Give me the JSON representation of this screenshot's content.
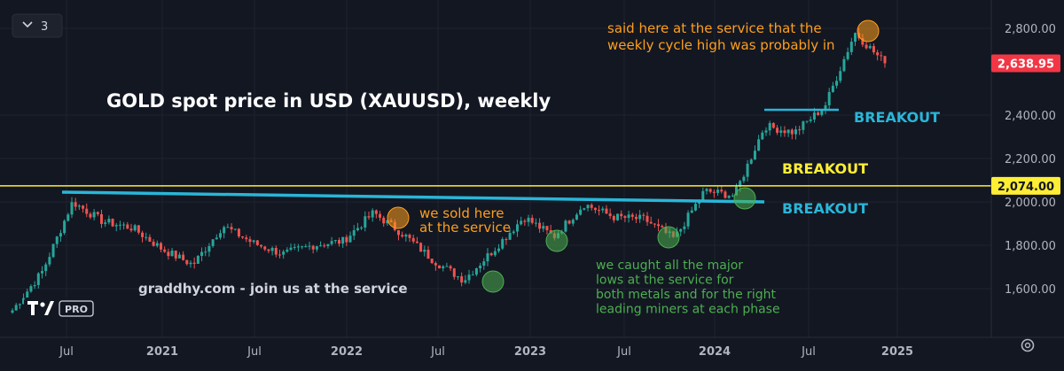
{
  "header": {
    "collapse_count": "3"
  },
  "branding": {
    "logo": "TV",
    "badge": "PRO"
  },
  "chart_data": {
    "type": "candlestick",
    "title": "GOLD spot price in USD (XAUUSD), weekly",
    "y_ticks": [
      1600,
      1800,
      2000,
      2200,
      2400,
      2800
    ],
    "y_tick_labels": [
      "1,600.00",
      "1,800.00",
      "2,000.00",
      "2,200.00",
      "2,400.00",
      "2,800.00"
    ],
    "ylim": [
      1450,
      2900
    ],
    "x_ticks": [
      "Jul",
      "2021",
      "Jul",
      "2022",
      "Jul",
      "2023",
      "Jul",
      "2024",
      "Jul",
      "2025"
    ],
    "price_badges": [
      {
        "value": 2638.95,
        "label": "2,638.95",
        "color": "#f23645"
      },
      {
        "value": 2074,
        "label": "2,074.00",
        "color": "#ffee33"
      }
    ],
    "levels": [
      {
        "value": 2074,
        "color": "#ffee33",
        "label": "BREAKOUT"
      }
    ],
    "series": [
      {
        "x": [
          "2020-04",
          "2020-06",
          "2020-08",
          "2020-10",
          "2020-12",
          "2021-02",
          "2021-03",
          "2021-05",
          "2021-07",
          "2021-09",
          "2021-11",
          "2022-01",
          "2022-03",
          "2022-05",
          "2022-07",
          "2022-09",
          "2022-11",
          "2023-01",
          "2023-02",
          "2023-04",
          "2023-06",
          "2023-08",
          "2023-10",
          "2023-12",
          "2024-02",
          "2024-04",
          "2024-06",
          "2024-08",
          "2024-10",
          "2024-11"
        ],
        "close": [
          1500,
          1680,
          2000,
          1910,
          1880,
          1780,
          1710,
          1890,
          1810,
          1760,
          1800,
          1820,
          1950,
          1850,
          1730,
          1640,
          1780,
          1930,
          1840,
          1990,
          1930,
          1920,
          1830,
          2050,
          2030,
          2350,
          2320,
          2440,
          2780,
          2638.95
        ]
      }
    ],
    "annotations": [
      {
        "text": [
          "said here at the service that the",
          "weekly cycle high was probably in"
        ],
        "color": "#ff9f1c"
      },
      {
        "text": [
          "BREAKOUT"
        ],
        "color": "#29b6d8"
      },
      {
        "text": [
          "BREAKOUT"
        ],
        "color": "#ffee33"
      },
      {
        "text": [
          "BREAKOUT"
        ],
        "color": "#29b6d8"
      },
      {
        "text": [
          "we sold here",
          "at the service"
        ],
        "color": "#ff9f1c"
      },
      {
        "text": [
          "we caught all the major",
          "lows at the service for",
          "both metals and for the right",
          "leading miners at each phase"
        ],
        "color": "#4caf50"
      },
      {
        "text": [
          "graddhy.com - join us at the service"
        ],
        "color": "#d1d4dc"
      }
    ]
  }
}
